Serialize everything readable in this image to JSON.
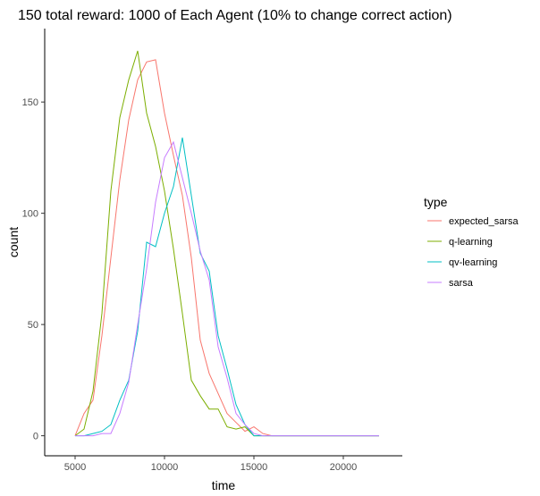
{
  "chart_data": {
    "type": "line",
    "title": "150 total reward: 1000 of Each Agent  (10% to change correct action)",
    "xlabel": "time",
    "ylabel": "count",
    "xlim": [
      3300,
      23300
    ],
    "ylim": [
      -9,
      183
    ],
    "xticks": [
      5000,
      10000,
      15000,
      20000
    ],
    "xtick_labels": [
      "5000",
      "10000",
      "15000",
      "20000"
    ],
    "yticks": [
      0,
      50,
      100,
      150
    ],
    "ytick_labels": [
      "0",
      "50",
      "100",
      "150"
    ],
    "grid": false,
    "legend": {
      "title": "type",
      "position": "right",
      "entries": [
        "expected_sarsa",
        "q-learning",
        "qv-learning",
        "sarsa"
      ]
    },
    "colors": {
      "expected_sarsa": "#F8766D",
      "q-learning": "#7CAE00",
      "qv-learning": "#00BFC4",
      "sarsa": "#C77CFF"
    },
    "series": [
      {
        "name": "expected_sarsa",
        "x": [
          5000,
          5500,
          6000,
          6500,
          7000,
          7500,
          8000,
          8500,
          9000,
          9500,
          10000,
          10500,
          11000,
          11500,
          12000,
          12500,
          13000,
          13500,
          14000,
          14500,
          15000,
          15500,
          16000,
          16500,
          17000,
          17500,
          18000,
          18500,
          19000,
          19500,
          20000,
          20500,
          21000,
          21500,
          22000
        ],
        "y": [
          0,
          10,
          16,
          45,
          80,
          115,
          142,
          160,
          168,
          169,
          145,
          126,
          108,
          80,
          43,
          28,
          19,
          10,
          6,
          2,
          4,
          1,
          0,
          0,
          0,
          0,
          0,
          0,
          0,
          0,
          0,
          0,
          0,
          0,
          0
        ]
      },
      {
        "name": "q-learning",
        "x": [
          5000,
          5500,
          6000,
          6500,
          7000,
          7500,
          8000,
          8500,
          9000,
          9500,
          10000,
          10500,
          11000,
          11500,
          12000,
          12500,
          13000,
          13500,
          14000,
          14500,
          15000,
          15500,
          16000,
          16500,
          17000,
          17500,
          18000,
          18500,
          19000,
          19500,
          20000,
          20500,
          21000,
          21500,
          22000
        ],
        "y": [
          0,
          3,
          20,
          55,
          110,
          143,
          160,
          173,
          145,
          130,
          110,
          84,
          55,
          25,
          18,
          12,
          12,
          4,
          3,
          4,
          0,
          0,
          0,
          0,
          0,
          0,
          0,
          0,
          0,
          0,
          0,
          0,
          0,
          0,
          0
        ]
      },
      {
        "name": "qv-learning",
        "x": [
          5000,
          5500,
          6000,
          6500,
          7000,
          7500,
          8000,
          8500,
          9000,
          9500,
          10000,
          10500,
          11000,
          11500,
          12000,
          12500,
          13000,
          13500,
          14000,
          14500,
          15000,
          15500,
          16000,
          16500,
          17000,
          17500,
          18000,
          18500,
          19000,
          19500,
          20000,
          20500,
          21000,
          21500,
          22000
        ],
        "y": [
          0,
          0,
          1,
          2,
          5,
          16,
          25,
          47,
          87,
          85,
          100,
          112,
          134,
          108,
          82,
          74,
          45,
          30,
          14,
          5,
          0,
          0,
          0,
          0,
          0,
          0,
          0,
          0,
          0,
          0,
          0,
          0,
          0,
          0,
          0
        ]
      },
      {
        "name": "sarsa",
        "x": [
          5000,
          5500,
          6000,
          6500,
          7000,
          7500,
          8000,
          8500,
          9000,
          9500,
          10000,
          10500,
          11000,
          11500,
          12000,
          12500,
          13000,
          13500,
          14000,
          14500,
          15000,
          15500,
          16000,
          16500,
          17000,
          17500,
          18000,
          18500,
          19000,
          19500,
          20000,
          20500,
          21000,
          21500,
          22000
        ],
        "y": [
          0,
          0,
          0,
          1,
          1,
          10,
          24,
          50,
          75,
          105,
          125,
          132,
          116,
          100,
          83,
          70,
          40,
          26,
          10,
          5,
          1,
          0,
          0,
          0,
          0,
          0,
          0,
          0,
          0,
          0,
          0,
          0,
          0,
          0,
          0
        ]
      }
    ]
  }
}
